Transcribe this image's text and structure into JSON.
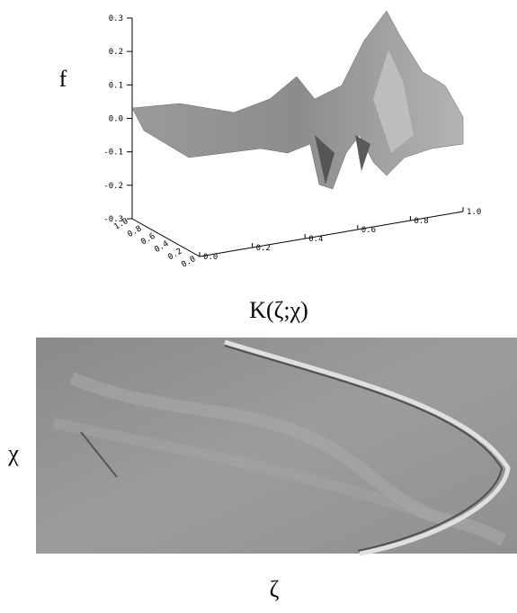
{
  "surface_panel": {
    "z_label": "f",
    "z_ticks": [
      "0.3",
      "0.2",
      "0.1",
      "0.0",
      "-0.1",
      "-0.2",
      "-0.3"
    ],
    "x_ticks": [
      "0.0",
      "0.2",
      "0.4",
      "0.6",
      "0.8",
      "1.0"
    ],
    "y_ticks": [
      "0.0",
      "0.2",
      "0.4",
      "0.6",
      "0.8",
      "1.0"
    ]
  },
  "title": "K(ζ;χ)",
  "image_panel": {
    "y_label": "χ",
    "x_label": "ζ"
  }
}
